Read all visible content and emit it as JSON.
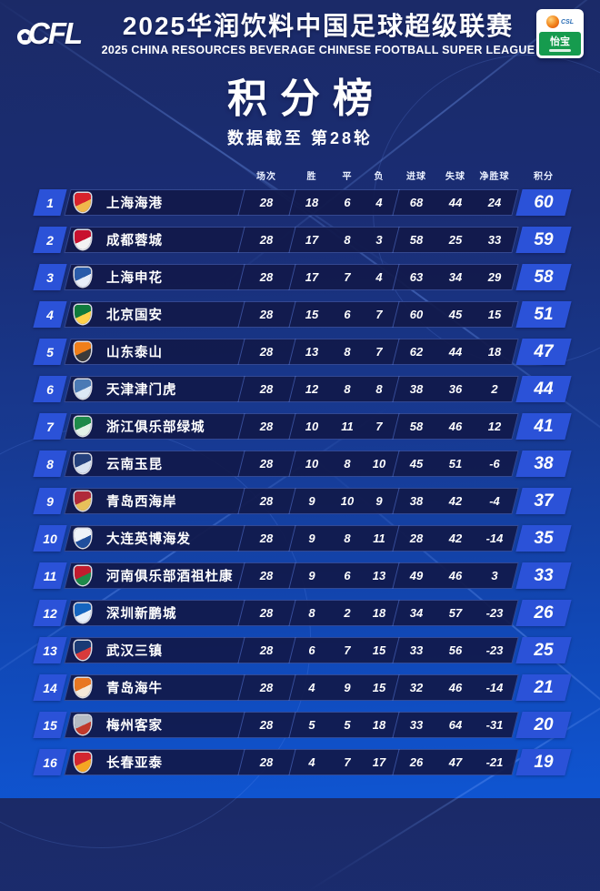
{
  "header": {
    "logo_text": "CFL",
    "title_cn": "2025华润饮料中国足球超级联赛",
    "title_en": "2025 CHINA RESOURCES BEVERAGE CHINESE FOOTBALL SUPER LEAGUE",
    "badge": {
      "csl": "CSL",
      "brand": "怡宝"
    }
  },
  "page": {
    "title": "积分榜",
    "subtitle": "数据截至 第28轮"
  },
  "colors": {
    "background_top": "#1b2a67",
    "background_bottom": "#0f55d2",
    "row_bar": "#11194a",
    "accent_blue": "#2b52d8",
    "sponsor_green": "#169b4e"
  },
  "chart_data": {
    "type": "table",
    "title": "积分榜",
    "subtitle": "数据截至 第28轮",
    "columns": [
      "场次",
      "胜",
      "平",
      "负",
      "进球",
      "失球",
      "净胜球",
      "积分"
    ],
    "rows": [
      {
        "rank": "1",
        "team": "上海海港",
        "values": [
          "28",
          "18",
          "6",
          "4",
          "68",
          "44",
          "24"
        ],
        "points": "60",
        "crest": [
          "#d8222c",
          "#f0b84b"
        ]
      },
      {
        "rank": "2",
        "team": "成都蓉城",
        "values": [
          "28",
          "17",
          "8",
          "3",
          "58",
          "25",
          "33"
        ],
        "points": "59",
        "crest": [
          "#c8102e",
          "#f3f3f3"
        ]
      },
      {
        "rank": "3",
        "team": "上海申花",
        "values": [
          "28",
          "17",
          "7",
          "4",
          "63",
          "34",
          "29"
        ],
        "points": "58",
        "crest": [
          "#2a5caa",
          "#e8eef8"
        ]
      },
      {
        "rank": "4",
        "team": "北京国安",
        "values": [
          "28",
          "15",
          "6",
          "7",
          "60",
          "45",
          "15"
        ],
        "points": "51",
        "crest": [
          "#0f7b3c",
          "#ffd24a"
        ]
      },
      {
        "rank": "5",
        "team": "山东泰山",
        "values": [
          "28",
          "13",
          "8",
          "7",
          "62",
          "44",
          "18"
        ],
        "points": "47",
        "crest": [
          "#f07f1a",
          "#3a3a3a"
        ]
      },
      {
        "rank": "6",
        "team": "天津津门虎",
        "values": [
          "28",
          "12",
          "8",
          "8",
          "38",
          "36",
          "2"
        ],
        "points": "44",
        "crest": [
          "#4a7ab5",
          "#dce8f5"
        ]
      },
      {
        "rank": "7",
        "team": "浙江俱乐部绿城",
        "values": [
          "28",
          "10",
          "11",
          "7",
          "58",
          "46",
          "12"
        ],
        "points": "41",
        "crest": [
          "#1e8a4a",
          "#e3f2e8"
        ]
      },
      {
        "rank": "8",
        "team": "云南玉昆",
        "values": [
          "28",
          "10",
          "8",
          "10",
          "45",
          "51",
          "-6"
        ],
        "points": "38",
        "crest": [
          "#24407c",
          "#d9e2f0"
        ]
      },
      {
        "rank": "9",
        "team": "青岛西海岸",
        "values": [
          "28",
          "9",
          "10",
          "9",
          "38",
          "42",
          "-4"
        ],
        "points": "37",
        "crest": [
          "#b02a3a",
          "#e8c05a"
        ]
      },
      {
        "rank": "10",
        "team": "大连英博海发",
        "values": [
          "28",
          "9",
          "8",
          "11",
          "28",
          "42",
          "-14"
        ],
        "points": "35",
        "crest": [
          "#eef2f8",
          "#1f4e9c"
        ]
      },
      {
        "rank": "11",
        "team": "河南俱乐部酒祖杜康",
        "values": [
          "28",
          "9",
          "6",
          "13",
          "49",
          "46",
          "3"
        ],
        "points": "33",
        "crest": [
          "#c01c2e",
          "#1e8a4a"
        ]
      },
      {
        "rank": "12",
        "team": "深圳新鹏城",
        "values": [
          "28",
          "8",
          "2",
          "18",
          "34",
          "57",
          "-23"
        ],
        "points": "26",
        "crest": [
          "#1565c0",
          "#e8f0fa"
        ]
      },
      {
        "rank": "13",
        "team": "武汉三镇",
        "values": [
          "28",
          "6",
          "7",
          "15",
          "33",
          "56",
          "-23"
        ],
        "points": "25",
        "crest": [
          "#1a3a75",
          "#d83a3a"
        ]
      },
      {
        "rank": "14",
        "team": "青岛海牛",
        "values": [
          "28",
          "4",
          "9",
          "15",
          "32",
          "46",
          "-14"
        ],
        "points": "21",
        "crest": [
          "#e87722",
          "#f5e9d8"
        ]
      },
      {
        "rank": "15",
        "team": "梅州客家",
        "values": [
          "28",
          "5",
          "5",
          "18",
          "33",
          "64",
          "-31"
        ],
        "points": "20",
        "crest": [
          "#b5bcc4",
          "#c0392b"
        ]
      },
      {
        "rank": "16",
        "team": "长春亚泰",
        "values": [
          "28",
          "4",
          "7",
          "17",
          "26",
          "47",
          "-21"
        ],
        "points": "19",
        "crest": [
          "#d22630",
          "#f5a623"
        ]
      }
    ]
  }
}
